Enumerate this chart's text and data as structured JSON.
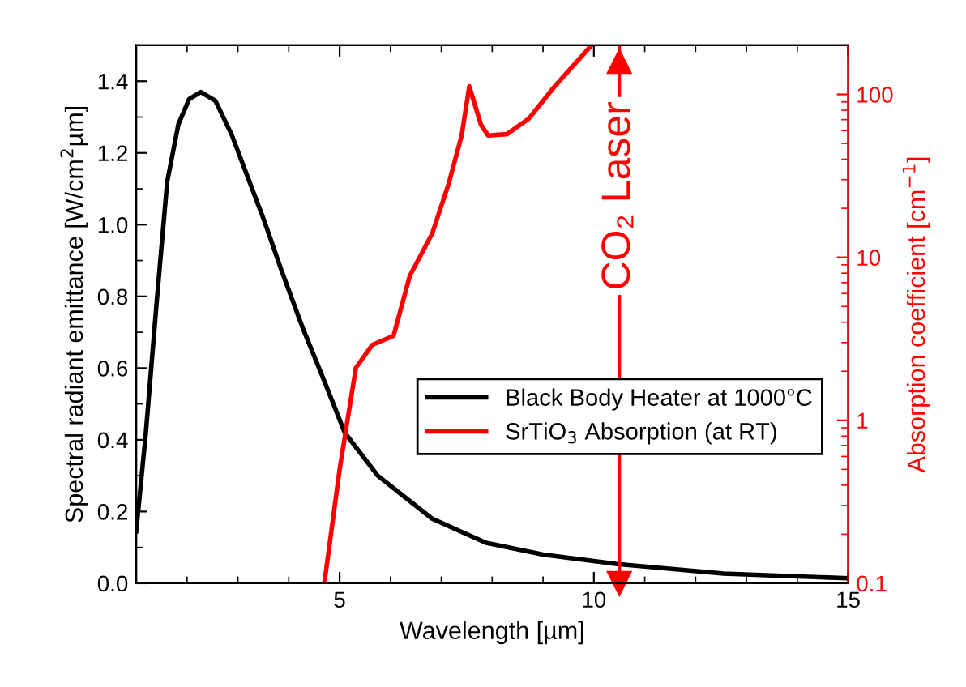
{
  "chart_data": {
    "type": "line",
    "xlabel": "Wavelength [µm]",
    "ylabel": "Spectral radiant emittance [W/cm$^{2}$µm]",
    "y2label": "Absorption coefficient [cm$^{−1}$]",
    "xlim": [
      1,
      15
    ],
    "xticks": [
      5,
      10,
      15
    ],
    "ylim": [
      0,
      1.5
    ],
    "yticks": [
      {
        "value": 0,
        "label": "0.0"
      },
      {
        "value": 0.2,
        "label": "0.2"
      },
      {
        "value": 0.4,
        "label": "0.4"
      },
      {
        "value": 0.6,
        "label": "0.6"
      },
      {
        "value": 0.8,
        "label": "0.8"
      },
      {
        "value": 1.0,
        "label": "1.0"
      },
      {
        "value": 1.2,
        "label": "1.2"
      },
      {
        "value": 1.4,
        "label": "1.4"
      }
    ],
    "y2lim": [
      0.1,
      200
    ],
    "y2ticks": [
      0.1,
      1,
      10,
      100
    ],
    "log": "y2",
    "grid": false,
    "legend": "center right",
    "marker": "none",
    "line_style": "solid",
    "ref_lines": [
      {
        "axis": "x",
        "value": 10.5,
        "label": "CO₂ Laser",
        "color": "#ff0000"
      }
    ],
    "series": [
      {
        "name": "Black Body Heater at 1000°C",
        "color": "#000000",
        "x": [
          1.0,
          1.19,
          1.4,
          1.61,
          1.83,
          2.04,
          2.27,
          2.56,
          2.88,
          3.2,
          3.52,
          3.85,
          4.28,
          4.71,
          5.1,
          5.75,
          6.82,
          7.88,
          9.0,
          10.43,
          12.55,
          15.0
        ],
        "values": [
          0.145,
          0.42,
          0.78,
          1.12,
          1.28,
          1.35,
          1.37,
          1.345,
          1.25,
          1.13,
          1.01,
          0.875,
          0.71,
          0.56,
          0.42,
          0.3,
          0.18,
          0.113,
          0.08,
          0.054,
          0.027,
          0.014
        ]
      },
      {
        "name": "SrTiO$_{3}$ Absorption (at RT)",
        "color": "#ff0000",
        "axis": "y2",
        "x": [
          4.7,
          5.0,
          5.32,
          5.64,
          6.06,
          6.38,
          6.82,
          7.14,
          7.4,
          7.55,
          7.78,
          7.92,
          8.29,
          8.72,
          9.25,
          9.69,
          9.95
        ],
        "values": [
          0.1,
          0.5,
          2.1,
          2.9,
          3.3,
          7.7,
          14,
          28,
          56,
          112,
          65,
          56,
          57,
          71,
          114,
          162,
          200
        ]
      }
    ]
  }
}
